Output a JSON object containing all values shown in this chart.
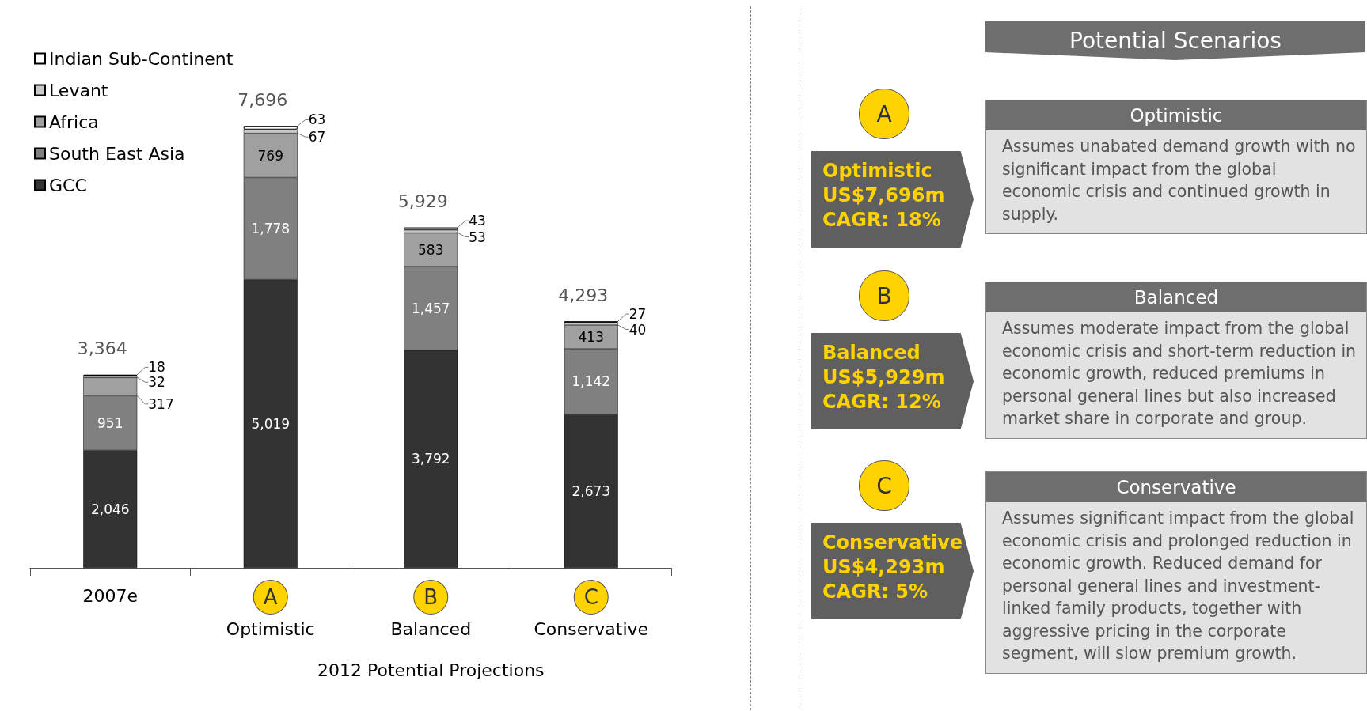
{
  "chart_data": [
    {
      "type": "bar",
      "stacked": true,
      "xlabel": "2012 Potential Projections",
      "categories": [
        "2007e",
        "Optimistic",
        "Balanced",
        "Conservative"
      ],
      "series": [
        {
          "name": "GCC",
          "color": "#333333",
          "values": [
            2046,
            5019,
            3792,
            2673
          ],
          "value_labels": [
            "2,046",
            "5,019",
            "3,792",
            "2,673"
          ]
        },
        {
          "name": "South East Asia",
          "color": "#808080",
          "values": [
            951,
            1778,
            1457,
            1142
          ],
          "value_labels": [
            "951",
            "1,778",
            "1,457",
            "1,142"
          ]
        },
        {
          "name": "Africa",
          "color": "#a0a0a0",
          "values": [
            317,
            769,
            583,
            413
          ],
          "value_labels": [
            "317",
            "769",
            "583",
            "413"
          ]
        },
        {
          "name": "Levant",
          "color": "#c8c8c8",
          "values": [
            32,
            67,
            53,
            40
          ],
          "value_labels": [
            "32",
            "67",
            "53",
            "40"
          ]
        },
        {
          "name": "Indian Sub-Continent",
          "color": "#ffffff",
          "values": [
            18,
            63,
            43,
            27
          ],
          "value_labels": [
            "18",
            "63",
            "43",
            "27"
          ]
        }
      ],
      "totals": [
        "3,364",
        "7,696",
        "5,929",
        "4,293"
      ],
      "legend": "top left",
      "grid": false,
      "annotations": [
        "A",
        "B",
        "C"
      ]
    },
    {
      "type": "other",
      "title": "Potential Scenarios",
      "annotations": [
        "A",
        "Optimistic",
        "US$7,696m",
        "CAGR: 18%",
        "Optimistic",
        "Assumes unabated demand growth with no significant impact from the global economic crisis and continued growth in supply.",
        "B",
        "Balanced",
        "US$5,929m",
        "CAGR: 12%",
        "Balanced",
        "Assumes moderate impact from the global economic crisis and short-term reduction in economic growth, reduced premiums in personal general lines but also increased market share in corporate and group.",
        "C",
        "Conservative",
        "US$4,293m",
        "CAGR: 5%",
        "Conservative",
        "Assumes significant impact from the global economic crisis and prolonged reduction in economic growth. Reduced demand for personal general lines and investment-linked family products, together with aggressive pricing in the corporate segment, will slow premium growth."
      ]
    }
  ]
}
